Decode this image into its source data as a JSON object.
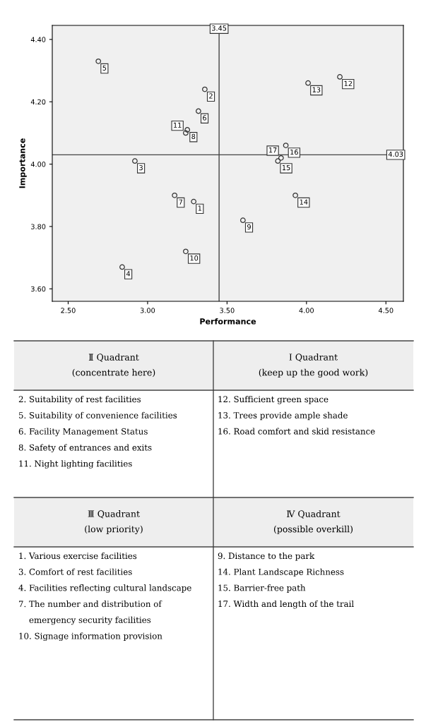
{
  "chart_data": {
    "type": "scatter",
    "xlabel": "Performance",
    "ylabel": "Importance",
    "x": [
      3.29,
      3.36,
      2.92,
      2.84,
      2.69,
      3.32,
      3.17,
      3.25,
      3.6,
      3.24,
      3.24,
      4.21,
      4.01,
      3.93,
      3.82,
      3.87,
      3.84
    ],
    "values": [
      3.88,
      4.24,
      4.01,
      3.67,
      4.33,
      4.17,
      3.9,
      4.11,
      3.82,
      3.72,
      4.1,
      4.28,
      4.26,
      3.9,
      4.01,
      4.06,
      4.02
    ],
    "color": "#333333",
    "marker": "circle",
    "grid": false,
    "xlim": [
      2.4,
      4.61
    ],
    "ylim": [
      3.56,
      4.445
    ],
    "xticks": [
      {
        "value": 2.5,
        "label": "2.50"
      },
      {
        "value": 3.0,
        "label": "3.00"
      },
      {
        "value": 3.5,
        "label": "3.50"
      },
      {
        "value": 4.0,
        "label": "4.00"
      },
      {
        "value": 4.5,
        "label": "4.50"
      }
    ],
    "yticks": [
      {
        "value": 3.6,
        "label": "3.60"
      },
      {
        "value": 3.8,
        "label": "3.80"
      },
      {
        "value": 4.0,
        "label": "4.00"
      },
      {
        "value": 4.2,
        "label": "4.20"
      },
      {
        "value": 4.4,
        "label": "4.40"
      }
    ],
    "ref_lines": [
      {
        "axis": "x",
        "value": 3.45,
        "label": "3.45"
      },
      {
        "axis": "y",
        "value": 4.03,
        "label": "4.03"
      }
    ],
    "annotations": [
      {
        "text": "1",
        "x": 3.29,
        "y": 3.88
      },
      {
        "text": "2",
        "x": 3.36,
        "y": 4.24
      },
      {
        "text": "3",
        "x": 2.92,
        "y": 4.01
      },
      {
        "text": "4",
        "x": 2.84,
        "y": 3.67
      },
      {
        "text": "5",
        "x": 2.69,
        "y": 4.33
      },
      {
        "text": "6",
        "x": 3.32,
        "y": 4.17
      },
      {
        "text": "7",
        "x": 3.17,
        "y": 3.9
      },
      {
        "text": "8",
        "x": 3.25,
        "y": 4.11
      },
      {
        "text": "9",
        "x": 3.6,
        "y": 3.82
      },
      {
        "text": "10",
        "x": 3.24,
        "y": 3.72
      },
      {
        "text": "11",
        "x": 3.24,
        "y": 4.1
      },
      {
        "text": "12",
        "x": 4.21,
        "y": 4.28
      },
      {
        "text": "13",
        "x": 4.01,
        "y": 4.26
      },
      {
        "text": "14",
        "x": 3.93,
        "y": 3.9
      },
      {
        "text": "15",
        "x": 3.82,
        "y": 4.01
      },
      {
        "text": "16",
        "x": 3.87,
        "y": 4.06
      },
      {
        "text": "17",
        "x": 3.84,
        "y": 4.02
      },
      "Ⅱ Quadrant\n(concentrate here)",
      "Ⅰ Quadrant\n(keep up the good work)",
      "2. Suitability of rest facilities\n5. Suitability of convenience facilities\n6. Facility Management Status\n8. Safety of entrances and exits\n11. Night lighting facilities",
      "12. Sufficient green space\n13. Trees provide ample shade\n16. Road comfort and skid resistance",
      "Ⅲ Quadrant\n(low priority)",
      "Ⅳ Quadrant\n(possible overkill)",
      "1. Various exercise facilities\n3. Comfort of rest facilities\n4. Facilities reflecting cultural landscape\n7. The number and distribution of\n    emergency security facilities\n10. Signage information provision",
      "9. Distance to the park\n14. Plant Landscape Richness\n15. Barrier-free path\n17. Width and length of the trail"
    ]
  }
}
